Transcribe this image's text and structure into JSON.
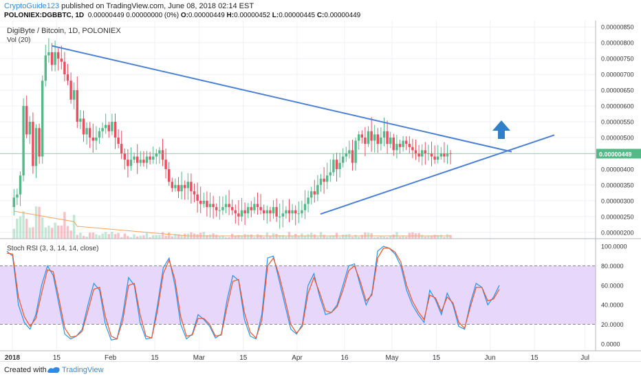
{
  "header": {
    "author": "CryptoGuide123",
    "published": " published on TradingView.com, June 08, 2018 02:14 EST",
    "symbol": "POLONIEX:DGBBTC, 1D",
    "open_label": "O:",
    "open": "0.00000449",
    "change": "0.00000449 0.00000000 (0%)",
    "high_label": "H:",
    "high": "0.00000452",
    "low_label": "L:",
    "low": "0.00000445",
    "close_label": "C:",
    "close": "0.00000449"
  },
  "footer": {
    "created_with": "Created with",
    "brand": "TradingView"
  },
  "colors": {
    "up": "#53b987",
    "down": "#eb4d5c",
    "trendline": "#4a7fd6",
    "arrow": "#2f7fc9",
    "rsi_k": "#2196f3",
    "rsi_d": "#f4511e",
    "rsi_band": "#e6d7fb"
  },
  "chart_data": [
    {
      "type": "candlestick",
      "title": "DigiByte / Bitcoin, 1D, POLONIEX",
      "volume_label": "Vol (20)",
      "last_price_label": "0.00000449",
      "y_ticks": [
        "0.00000850",
        "0.00000800",
        "0.00000750",
        "0.00000700",
        "0.00000650",
        "0.00000600",
        "0.00000550",
        "0.00000500",
        "0.00000450",
        "0.00000400",
        "0.00000350",
        "0.00000300",
        "0.00000250",
        "0.00000200"
      ],
      "ylim": [
        1.8e-06,
        8.7e-06
      ],
      "x_ticks": [
        {
          "label": "2018",
          "day": 0
        },
        {
          "label": "15",
          "day": 14
        },
        {
          "label": "Feb",
          "day": 31
        },
        {
          "label": "15",
          "day": 45
        },
        {
          "label": "Mar",
          "day": 59
        },
        {
          "label": "15",
          "day": 73
        },
        {
          "label": "Apr",
          "day": 90
        },
        {
          "label": "16",
          "day": 105
        },
        {
          "label": "May",
          "day": 120
        },
        {
          "label": "15",
          "day": 134
        },
        {
          "label": "Jun",
          "day": 151
        },
        {
          "label": "15",
          "day": 165
        },
        {
          "label": "Jul",
          "day": 181
        }
      ],
      "close_values": [
        3.1,
        3.2,
        3.8,
        6.0,
        5.1,
        5.5,
        4.1,
        5.3,
        4.4,
        6.8,
        7.6,
        7.7,
        7.3,
        7.7,
        7.5,
        7.4,
        7.0,
        6.8,
        6.2,
        6.5,
        5.5,
        5.6,
        5.1,
        5.3,
        5.0,
        4.9,
        5.0,
        5.2,
        5.3,
        5.4,
        5.2,
        5.5,
        5.0,
        4.8,
        4.5,
        4.3,
        4.1,
        4.3,
        4.4,
        4.2,
        4.3,
        4.2,
        4.4,
        4.3,
        4.4,
        4.5,
        4.6,
        4.3,
        4.0,
        3.6,
        3.4,
        3.5,
        3.3,
        3.5,
        3.4,
        3.6,
        3.3,
        3.2,
        3.0,
        2.9,
        3.0,
        2.8,
        2.9,
        2.8,
        2.7,
        2.7,
        2.8,
        2.9,
        2.8,
        2.7,
        2.6,
        2.5,
        2.7,
        2.6,
        2.8,
        2.7,
        2.9,
        2.8,
        2.7,
        2.6,
        2.7,
        2.6,
        2.8,
        2.5,
        2.5,
        2.6,
        2.7,
        2.6,
        2.7,
        2.6,
        2.6,
        2.7,
        2.9,
        3.1,
        3.3,
        3.2,
        3.5,
        3.7,
        3.6,
        3.8,
        3.9,
        4.3,
        4.0,
        4.2,
        4.4,
        4.5,
        4.6,
        4.2,
        4.9,
        5.1,
        5.0,
        4.8,
        5.2,
        4.9,
        5.1,
        4.8,
        5.0,
        5.2,
        4.8,
        5.0,
        4.6,
        4.8,
        4.7,
        4.9,
        4.8,
        4.7,
        4.6,
        4.5,
        4.4,
        4.6,
        4.5,
        4.5,
        4.4,
        4.3,
        4.4,
        4.5,
        4.4,
        4.5,
        4.49
      ],
      "volume_note": "volume histogram shown beneath candles"
    },
    {
      "type": "line",
      "title": "Stoch RSI (3, 3, 14, 14, close)",
      "y_ticks": [
        "100.0000",
        "80.0000",
        "60.0000",
        "40.0000",
        "20.0000",
        "0.0000"
      ],
      "ylim": [
        -5,
        105
      ],
      "band": [
        20,
        80
      ],
      "series": [
        {
          "values": [
            95,
            90,
            40,
            22,
            15,
            30,
            60,
            80,
            70,
            40,
            10,
            5,
            8,
            15,
            40,
            62,
            55,
            20,
            4,
            5,
            30,
            68,
            60,
            22,
            5,
            6,
            40,
            78,
            88,
            60,
            20,
            5,
            10,
            30,
            25,
            18,
            6,
            10,
            45,
            70,
            65,
            25,
            8,
            5,
            30,
            88,
            90,
            65,
            40,
            15,
            10,
            20,
            60,
            72,
            48,
            30,
            32,
            40,
            60,
            80,
            82,
            60,
            40,
            52,
            95,
            100,
            98,
            92,
            80,
            55,
            40,
            30,
            22,
            55,
            45,
            30,
            52,
            40,
            18,
            15,
            42,
            62,
            58,
            40,
            48,
            60
          ]
        },
        {
          "values": [
            93,
            92,
            48,
            28,
            18,
            26,
            52,
            76,
            74,
            46,
            16,
            7,
            8,
            13,
            34,
            56,
            58,
            28,
            8,
            5,
            24,
            60,
            62,
            30,
            8,
            6,
            34,
            72,
            86,
            66,
            28,
            8,
            9,
            26,
            26,
            20,
            8,
            9,
            38,
            64,
            66,
            32,
            12,
            6,
            24,
            80,
            88,
            70,
            46,
            20,
            11,
            18,
            52,
            68,
            52,
            34,
            32,
            38,
            55,
            75,
            80,
            64,
            44,
            50,
            88,
            98,
            98,
            94,
            84,
            60,
            44,
            33,
            25,
            50,
            47,
            33,
            48,
            42,
            22,
            16,
            38,
            58,
            58,
            44,
            46,
            56
          ]
        }
      ]
    }
  ]
}
